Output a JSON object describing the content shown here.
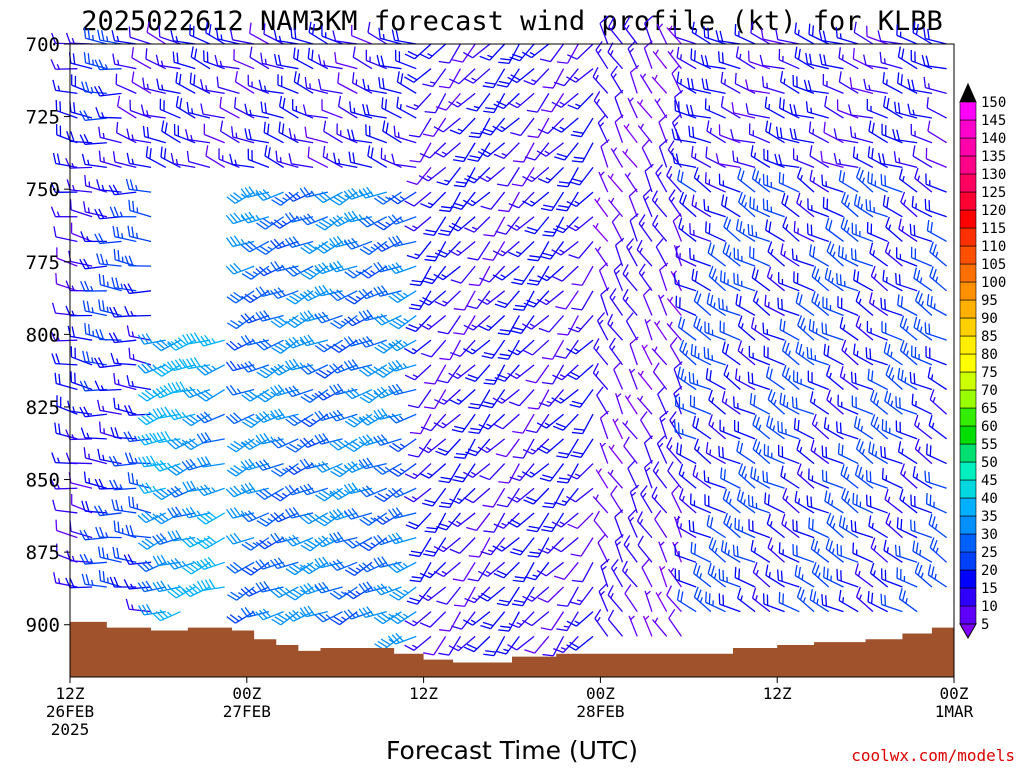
{
  "chart_data": {
    "type": "wind-barb-timeheight",
    "title": "2025022612 NAM3KM forecast wind profile (kt) for KLBB",
    "xlabel": "Forecast Time (UTC)",
    "ylabel": "",
    "credit": "coolwx.com/models",
    "y_axis": {
      "unit": "hPa",
      "range": [
        700,
        918
      ],
      "inverted": true,
      "ticks": [
        700,
        725,
        750,
        775,
        800,
        825,
        850,
        875,
        900
      ]
    },
    "x_axis": {
      "unit": "hours since 2025-02-26 12Z",
      "range": [
        0,
        60
      ],
      "ticks": [
        {
          "hour": 0,
          "lines": [
            "12Z",
            "26FEB",
            "2025"
          ]
        },
        {
          "hour": 12,
          "lines": [
            "00Z",
            "27FEB"
          ]
        },
        {
          "hour": 24,
          "lines": [
            "12Z"
          ]
        },
        {
          "hour": 36,
          "lines": [
            "00Z",
            "28FEB"
          ]
        },
        {
          "hour": 48,
          "lines": [
            "12Z"
          ]
        },
        {
          "hour": 60,
          "lines": [
            "00Z",
            "1MAR"
          ]
        }
      ]
    },
    "colorbar": {
      "levels": [
        5,
        10,
        15,
        20,
        25,
        30,
        35,
        40,
        45,
        50,
        55,
        60,
        65,
        70,
        75,
        80,
        85,
        90,
        95,
        100,
        105,
        110,
        115,
        120,
        125,
        130,
        135,
        140,
        145,
        150
      ],
      "colors": [
        "#8000ff",
        "#6000ff",
        "#3000ff",
        "#0000ff",
        "#0040ff",
        "#0060ff",
        "#0090ff",
        "#00b0ff",
        "#00d8e0",
        "#00f0c0",
        "#00e070",
        "#00dd00",
        "#33ee00",
        "#99ff00",
        "#ccff00",
        "#ffff00",
        "#ffee00",
        "#ffd000",
        "#ffb000",
        "#ff9000",
        "#ff7000",
        "#ff5000",
        "#ff3000",
        "#ff0000",
        "#ff0033",
        "#ff0060",
        "#ff0088",
        "#ff00aa",
        "#ff00cc",
        "#ff00ff"
      ]
    },
    "terrain_top_hpa": [
      {
        "hour": 0,
        "p": 899
      },
      {
        "hour": 2.5,
        "p": 901
      },
      {
        "hour": 5.5,
        "p": 902
      },
      {
        "hour": 8,
        "p": 901
      },
      {
        "hour": 11,
        "p": 902
      },
      {
        "hour": 12.5,
        "p": 905
      },
      {
        "hour": 14,
        "p": 907
      },
      {
        "hour": 15.5,
        "p": 909
      },
      {
        "hour": 17,
        "p": 908
      },
      {
        "hour": 22,
        "p": 910
      },
      {
        "hour": 24,
        "p": 912
      },
      {
        "hour": 26,
        "p": 913
      },
      {
        "hour": 30,
        "p": 911
      },
      {
        "hour": 33,
        "p": 910
      },
      {
        "hour": 41,
        "p": 910
      },
      {
        "hour": 45,
        "p": 908
      },
      {
        "hour": 48,
        "p": 907
      },
      {
        "hour": 50.5,
        "p": 906
      },
      {
        "hour": 54,
        "p": 905
      },
      {
        "hour": 56.5,
        "p": 903
      },
      {
        "hour": 58.5,
        "p": 901
      },
      {
        "hour": 60,
        "p": 901
      }
    ],
    "wind_regimes": [
      {
        "hours": [
          0,
          2.5
        ],
        "levels_hpa": [
          700,
          900
        ],
        "dir_deg": 280,
        "speed_kt": 15
      },
      {
        "hours": [
          2.5,
          5.5
        ],
        "levels_hpa": [
          700,
          900
        ],
        "dir_deg": 275,
        "speed_kt": 20
      },
      {
        "hours": [
          6,
          11
        ],
        "levels_hpa": [
          800,
          900
        ],
        "dir_deg": 250,
        "speed_kt": 35
      },
      {
        "hours": [
          12,
          24
        ],
        "levels_hpa": [
          750,
          905
        ],
        "dir_deg": 245,
        "speed_kt": 30
      },
      {
        "hours": [
          4,
          24
        ],
        "levels_hpa": [
          700,
          750
        ],
        "dir_deg": 290,
        "speed_kt": 15
      },
      {
        "hours": [
          24,
          36
        ],
        "levels_hpa": [
          700,
          910
        ],
        "dir_deg": 220,
        "speed_kt": 15
      },
      {
        "hours": [
          36,
          42
        ],
        "levels_hpa": [
          700,
          910
        ],
        "dir_deg": 330,
        "speed_kt": 10
      },
      {
        "hours": [
          42,
          60
        ],
        "levels_hpa": [
          750,
          900
        ],
        "dir_deg": 300,
        "speed_kt": 20
      },
      {
        "hours": [
          42,
          60
        ],
        "levels_hpa": [
          700,
          750
        ],
        "dir_deg": 290,
        "speed_kt": 15
      }
    ]
  }
}
